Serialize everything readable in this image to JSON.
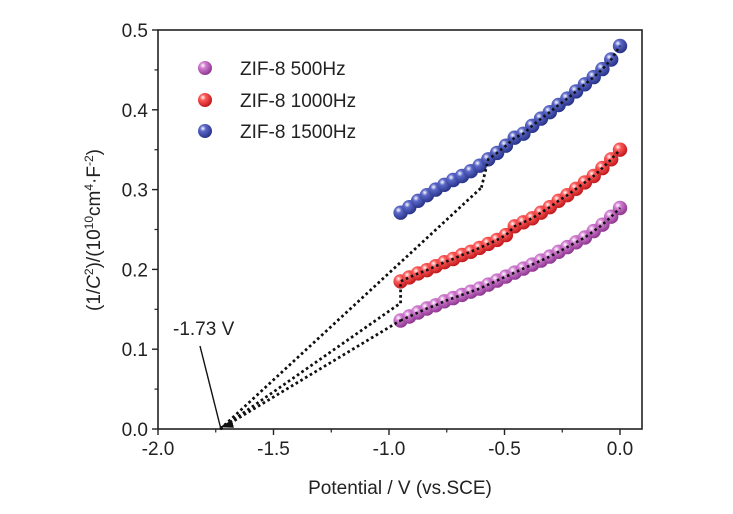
{
  "chart_data": {
    "type": "scatter",
    "title": "",
    "xlabel": "Potential / V (vs.SCE)",
    "ylabel_parts": {
      "prefix": "(1/",
      "italic": "C",
      "sup1": "2",
      "mid": ")/(10",
      "sup2": "10",
      "unit": "cm",
      "sup3": "4",
      "dot": "·F",
      "sup4": "-2",
      "suffix": ")"
    },
    "xlim": [
      -2.0,
      0.1
    ],
    "ylim": [
      0.0,
      0.5
    ],
    "xticks": [
      -2.0,
      -1.5,
      -1.0,
      -0.5,
      0.0
    ],
    "xtick_labels": [
      "-2.0",
      "-1.5",
      "-1.0",
      "-0.5",
      "0.0"
    ],
    "yticks": [
      0.0,
      0.1,
      0.2,
      0.3,
      0.4,
      0.5
    ],
    "ytick_labels": [
      "0.0",
      "0.1",
      "0.2",
      "0.3",
      "0.4",
      "0.5"
    ],
    "grid": false,
    "legend_position": "top-left",
    "series": [
      {
        "name": "ZIF-8 500Hz",
        "color": "#b04fb0",
        "x": [
          -0.95,
          -0.912,
          -0.874,
          -0.836,
          -0.798,
          -0.76,
          -0.722,
          -0.684,
          -0.646,
          -0.608,
          -0.57,
          -0.532,
          -0.494,
          -0.456,
          -0.418,
          -0.38,
          -0.342,
          -0.304,
          -0.266,
          -0.228,
          -0.19,
          -0.152,
          -0.114,
          -0.076,
          -0.038,
          0.0
        ],
        "y": [
          0.136,
          0.141,
          0.146,
          0.151,
          0.155,
          0.16,
          0.164,
          0.168,
          0.172,
          0.176,
          0.181,
          0.186,
          0.191,
          0.196,
          0.201,
          0.206,
          0.211,
          0.216,
          0.222,
          0.228,
          0.234,
          0.24,
          0.248,
          0.256,
          0.266,
          0.277
        ],
        "fit": {
          "x_start": -1.73,
          "x_end": -0.95,
          "slope": 0.1744
        }
      },
      {
        "name": "ZIF-8 1000Hz",
        "color": "#e8262a",
        "x": [
          -0.95,
          -0.912,
          -0.874,
          -0.836,
          -0.798,
          -0.76,
          -0.722,
          -0.684,
          -0.646,
          -0.608,
          -0.57,
          -0.532,
          -0.494,
          -0.456,
          -0.418,
          -0.38,
          -0.342,
          -0.304,
          -0.266,
          -0.228,
          -0.19,
          -0.152,
          -0.114,
          -0.076,
          -0.038,
          0.0
        ],
        "y": [
          0.185,
          0.19,
          0.195,
          0.199,
          0.204,
          0.209,
          0.213,
          0.218,
          0.222,
          0.227,
          0.232,
          0.237,
          0.243,
          0.254,
          0.259,
          0.264,
          0.271,
          0.278,
          0.286,
          0.293,
          0.301,
          0.309,
          0.317,
          0.327,
          0.338,
          0.35
        ],
        "fit": {
          "x_start": -1.73,
          "x_end": -0.95,
          "slope": 0.2023
        }
      },
      {
        "name": "ZIF-8 1500Hz",
        "color": "#3a47a6",
        "x": [
          -0.95,
          -0.912,
          -0.874,
          -0.836,
          -0.798,
          -0.76,
          -0.722,
          -0.684,
          -0.646,
          -0.608,
          -0.57,
          -0.532,
          -0.494,
          -0.456,
          -0.418,
          -0.38,
          -0.342,
          -0.304,
          -0.266,
          -0.228,
          -0.19,
          -0.152,
          -0.114,
          -0.076,
          -0.038,
          0.0
        ],
        "y": [
          0.271,
          0.278,
          0.286,
          0.293,
          0.3,
          0.306,
          0.312,
          0.317,
          0.323,
          0.33,
          0.338,
          0.346,
          0.355,
          0.365,
          0.37,
          0.38,
          0.389,
          0.397,
          0.406,
          0.414,
          0.423,
          0.432,
          0.441,
          0.451,
          0.463,
          0.48
        ],
        "fit": {
          "x_start": -1.73,
          "x_end": -0.6,
          "slope": 0.2677
        }
      }
    ],
    "annotations": [
      {
        "text": "-1.73 V",
        "arrow_to": [
          -1.73,
          0.0
        ],
        "text_at": [
          -1.7,
          0.11
        ]
      }
    ]
  }
}
